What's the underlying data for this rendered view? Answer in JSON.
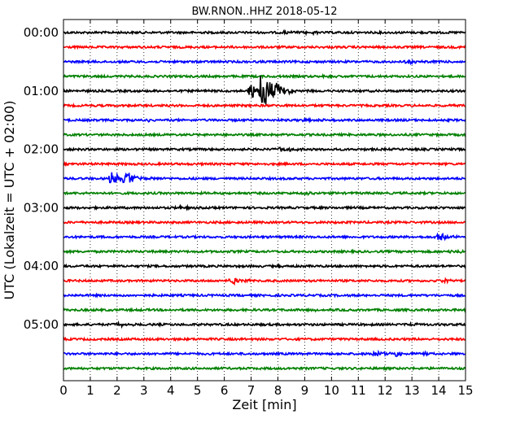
{
  "chart_data": {
    "type": "line",
    "title": "BW.RNON..HHZ 2018-05-12",
    "xlabel": "Zeit  [min]",
    "ylabel": "UTC (Lokalzeit = UTC + 02:00)",
    "xlim": [
      0,
      15
    ],
    "x_ticks": [
      "0",
      "1",
      "2",
      "3",
      "4",
      "5",
      "6",
      "7",
      "8",
      "9",
      "10",
      "11",
      "12",
      "13",
      "14",
      "15"
    ],
    "y_tick_labels": [
      "00:00",
      "01:00",
      "02:00",
      "03:00",
      "04:00",
      "05:00"
    ],
    "grid": true,
    "trace_interval_minutes": 15,
    "trace_colors": [
      "#000000",
      "#ff0000",
      "#0000ff",
      "#008000"
    ],
    "traces": [
      {
        "start": "00:00",
        "events": [
          {
            "t": 8.2,
            "amp": 0.1
          },
          {
            "t": 9.1,
            "amp": 0.1
          }
        ]
      },
      {
        "start": "00:15",
        "events": []
      },
      {
        "start": "00:30",
        "events": [
          {
            "t": 12.8,
            "amp": 0.15
          }
        ]
      },
      {
        "start": "00:45",
        "events": [
          {
            "t": 9.6,
            "amp": 0.1
          }
        ]
      },
      {
        "start": "01:00",
        "events": [
          {
            "t": 7.4,
            "amp": 1.6
          },
          {
            "t": 7.0,
            "amp": 0.6
          },
          {
            "t": 8.0,
            "amp": 0.5
          }
        ]
      },
      {
        "start": "01:15",
        "events": []
      },
      {
        "start": "01:30",
        "events": [
          {
            "t": 3.0,
            "amp": 0.1
          },
          {
            "t": 9.0,
            "amp": 0.1
          }
        ]
      },
      {
        "start": "01:45",
        "events": []
      },
      {
        "start": "02:00",
        "events": [
          {
            "t": 8.1,
            "amp": 0.25
          }
        ]
      },
      {
        "start": "02:15",
        "events": []
      },
      {
        "start": "02:30",
        "events": [
          {
            "t": 1.8,
            "amp": 0.45
          },
          {
            "t": 2.3,
            "amp": 0.6
          }
        ]
      },
      {
        "start": "02:45",
        "events": [
          {
            "t": 9.0,
            "amp": 0.1
          }
        ]
      },
      {
        "start": "03:00",
        "events": [
          {
            "t": 4.3,
            "amp": 0.1
          }
        ]
      },
      {
        "start": "03:15",
        "events": []
      },
      {
        "start": "03:30",
        "events": [
          {
            "t": 14.0,
            "amp": 0.3
          }
        ]
      },
      {
        "start": "03:45",
        "events": [
          {
            "t": 14.5,
            "amp": 0.1
          }
        ]
      },
      {
        "start": "04:00",
        "events": [
          {
            "t": 8.0,
            "amp": 0.1
          }
        ]
      },
      {
        "start": "04:15",
        "events": [
          {
            "t": 6.3,
            "amp": 0.3
          },
          {
            "t": 14.2,
            "amp": 0.15
          }
        ]
      },
      {
        "start": "04:30",
        "events": []
      },
      {
        "start": "04:45",
        "events": [
          {
            "t": 9.3,
            "amp": 0.1
          }
        ]
      },
      {
        "start": "05:00",
        "events": [
          {
            "t": 2.0,
            "amp": 0.15
          },
          {
            "t": 12.8,
            "amp": 0.12
          }
        ]
      },
      {
        "start": "05:15",
        "events": []
      },
      {
        "start": "05:30",
        "events": [
          {
            "t": 11.6,
            "amp": 0.25
          },
          {
            "t": 12.4,
            "amp": 0.2
          },
          {
            "t": 13.4,
            "amp": 0.15
          }
        ]
      },
      {
        "start": "05:45",
        "events": []
      }
    ]
  }
}
